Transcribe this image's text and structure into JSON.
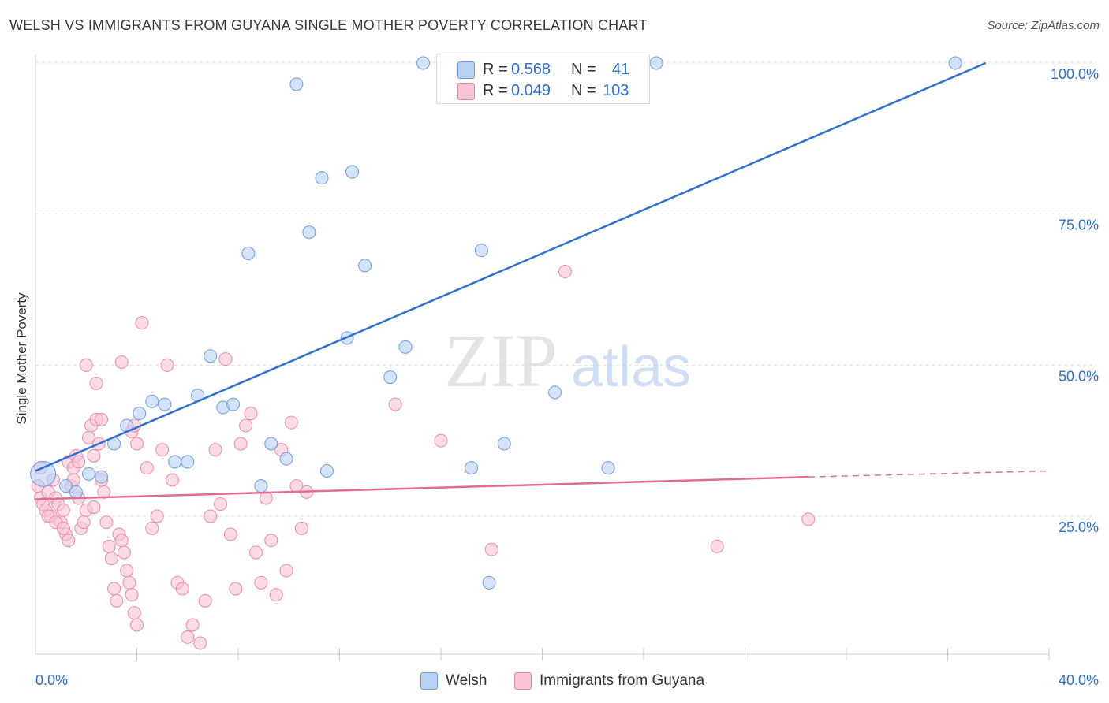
{
  "title": "WELSH VS IMMIGRANTS FROM GUYANA SINGLE MOTHER POVERTY CORRELATION CHART",
  "source": "Source: ZipAtlas.com",
  "watermark": {
    "zip": "ZIP",
    "atlas": "atlas"
  },
  "legend": {
    "rows": [
      {
        "r_label": "R =",
        "r_value": "0.568",
        "n_label": "N =",
        "n_value": "41"
      },
      {
        "r_label": "R =",
        "r_value": "0.049",
        "n_label": "N =",
        "n_value": "103"
      }
    ]
  },
  "bottom_legend": {
    "welsh": "Welsh",
    "guyana": "Immigrants from Guyana"
  },
  "colors": {
    "welsh_fill": "#b8d0f2",
    "welsh_stroke": "#6f9be0",
    "welsh_line": "#2e6fd1",
    "guyana_fill": "#f8c4d4",
    "guyana_stroke": "#ea8aaa",
    "guyana_line": "#e46b96",
    "axis_label": "#2f6fd0",
    "grid": "#e2e2e2"
  },
  "chart_data": {
    "type": "scatter",
    "title": "WELSH VS IMMIGRANTS FROM GUYANA SINGLE MOTHER POVERTY CORRELATION CHART",
    "xlabel": "",
    "ylabel": "Single Mother Poverty",
    "xlim": [
      0,
      40
    ],
    "ylim": [
      0,
      102
    ],
    "x_tick_labels": [
      "0.0%",
      "40.0%"
    ],
    "y_ticks": [
      25,
      50,
      75,
      100
    ],
    "y_tick_labels": [
      "25.0%",
      "50.0%",
      "75.0%",
      "100.0%"
    ],
    "grid": true,
    "series": [
      {
        "name": "Welsh",
        "r": 0.568,
        "n": 41,
        "trend": {
          "x": [
            0,
            37.5
          ],
          "y": [
            32.5,
            100
          ]
        },
        "points": [
          [
            0.3,
            32
          ],
          [
            1.2,
            30
          ],
          [
            1.6,
            29
          ],
          [
            2.1,
            32
          ],
          [
            2.6,
            31.5
          ],
          [
            3.1,
            37
          ],
          [
            3.6,
            40
          ],
          [
            4.1,
            42
          ],
          [
            4.6,
            44
          ],
          [
            5.1,
            43.5
          ],
          [
            5.5,
            34
          ],
          [
            6.0,
            34
          ],
          [
            6.4,
            45
          ],
          [
            6.9,
            51.5
          ],
          [
            7.4,
            43
          ],
          [
            7.8,
            43.5
          ],
          [
            8.4,
            68.5
          ],
          [
            8.9,
            30
          ],
          [
            9.3,
            37
          ],
          [
            9.9,
            34.5
          ],
          [
            10.3,
            96.5
          ],
          [
            10.8,
            72
          ],
          [
            11.3,
            81
          ],
          [
            11.5,
            32.5
          ],
          [
            12.3,
            54.5
          ],
          [
            12.5,
            82
          ],
          [
            13.0,
            66.5
          ],
          [
            14.0,
            48
          ],
          [
            14.6,
            53
          ],
          [
            15.3,
            100
          ],
          [
            17.2,
            33
          ],
          [
            17.6,
            69
          ],
          [
            17.9,
            14
          ],
          [
            18.5,
            37
          ],
          [
            20.5,
            45.5
          ],
          [
            22.6,
            33
          ],
          [
            24.5,
            100
          ],
          [
            36.3,
            100
          ]
        ]
      },
      {
        "name": "Immigrants from Guyana",
        "r": 0.049,
        "n": 103,
        "trend": {
          "x": [
            0,
            30.5
          ],
          "y": [
            27.8,
            31.5
          ]
        },
        "trend_dashed": {
          "x": [
            30.5,
            40
          ],
          "y": [
            31.5,
            32.5
          ]
        },
        "points": [
          [
            0.1,
            30
          ],
          [
            0.2,
            28
          ],
          [
            0.3,
            27
          ],
          [
            0.4,
            26
          ],
          [
            0.5,
            29
          ],
          [
            0.6,
            25
          ],
          [
            0.7,
            31
          ],
          [
            0.8,
            28
          ],
          [
            0.9,
            27
          ],
          [
            1.0,
            24
          ],
          [
            1.1,
            26
          ],
          [
            1.2,
            22
          ],
          [
            1.3,
            34
          ],
          [
            1.4,
            30
          ],
          [
            1.5,
            33
          ],
          [
            1.6,
            35
          ],
          [
            1.7,
            28
          ],
          [
            1.8,
            23
          ],
          [
            1.9,
            24
          ],
          [
            2.0,
            26
          ],
          [
            2.1,
            38
          ],
          [
            2.2,
            40
          ],
          [
            2.3,
            35
          ],
          [
            2.4,
            41
          ],
          [
            2.5,
            37
          ],
          [
            2.6,
            31
          ],
          [
            2.7,
            29
          ],
          [
            2.8,
            24
          ],
          [
            2.9,
            20
          ],
          [
            3.0,
            18
          ],
          [
            3.1,
            13
          ],
          [
            3.2,
            11
          ],
          [
            3.3,
            22
          ],
          [
            3.4,
            21
          ],
          [
            3.5,
            19
          ],
          [
            3.6,
            16
          ],
          [
            3.7,
            14
          ],
          [
            3.8,
            12
          ],
          [
            3.9,
            9
          ],
          [
            4.0,
            7
          ],
          [
            2.0,
            50
          ],
          [
            2.4,
            47
          ],
          [
            2.6,
            41
          ],
          [
            3.4,
            50.5
          ],
          [
            3.8,
            39
          ],
          [
            3.9,
            40
          ],
          [
            4.0,
            37
          ],
          [
            4.2,
            57
          ],
          [
            4.4,
            33
          ],
          [
            4.6,
            23
          ],
          [
            4.8,
            25
          ],
          [
            5.0,
            36
          ],
          [
            5.2,
            50
          ],
          [
            5.4,
            31
          ],
          [
            5.6,
            14
          ],
          [
            5.8,
            13
          ],
          [
            6.0,
            5
          ],
          [
            6.2,
            7
          ],
          [
            6.5,
            4
          ],
          [
            6.7,
            11
          ],
          [
            6.9,
            25
          ],
          [
            7.1,
            36
          ],
          [
            7.3,
            27
          ],
          [
            7.5,
            51
          ],
          [
            7.7,
            22
          ],
          [
            7.9,
            13
          ],
          [
            8.1,
            37
          ],
          [
            8.3,
            40
          ],
          [
            8.5,
            42
          ],
          [
            8.7,
            19
          ],
          [
            8.9,
            14
          ],
          [
            9.1,
            28
          ],
          [
            9.3,
            21
          ],
          [
            9.5,
            12
          ],
          [
            9.7,
            36
          ],
          [
            9.9,
            16
          ],
          [
            10.1,
            40.5
          ],
          [
            10.3,
            30
          ],
          [
            10.5,
            23
          ],
          [
            10.7,
            29
          ],
          [
            0.2,
            33
          ],
          [
            0.5,
            25
          ],
          [
            0.8,
            24
          ],
          [
            1.1,
            23
          ],
          [
            1.3,
            21
          ],
          [
            1.5,
            31
          ],
          [
            1.7,
            34
          ],
          [
            2.3,
            26.5
          ],
          [
            14.2,
            43.5
          ],
          [
            16.0,
            37.5
          ],
          [
            18.0,
            19.5
          ],
          [
            20.9,
            65.5
          ],
          [
            26.9,
            20
          ],
          [
            30.5,
            24.5
          ]
        ]
      }
    ]
  }
}
